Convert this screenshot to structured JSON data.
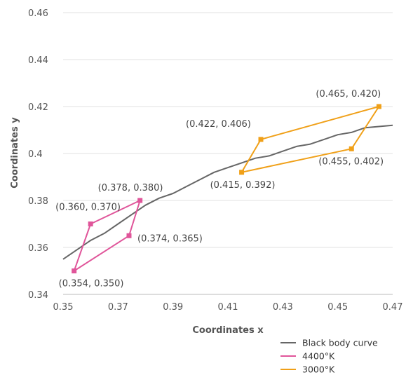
{
  "chart_data": {
    "type": "line",
    "xlabel": "Coordinates x",
    "ylabel": "Coordinates y",
    "xlim": [
      0.35,
      0.47
    ],
    "ylim": [
      0.34,
      0.46
    ],
    "xticks": [
      0.35,
      0.37,
      0.39,
      0.41,
      0.43,
      0.45,
      0.47
    ],
    "yticks": [
      0.34,
      0.36,
      0.38,
      0.4,
      0.42,
      0.44,
      0.46
    ],
    "xtick_labels": [
      "0.35",
      "0.37",
      "0.39",
      "0.41",
      "0.43",
      "0.45",
      "0.47"
    ],
    "ytick_labels": [
      "0.34",
      "0.36",
      "0.38",
      "0.4",
      "0.42",
      "0.44",
      "0.46"
    ],
    "grid": "horizontal",
    "legend_position": "bottom-right",
    "series": [
      {
        "name": "Black body curve",
        "color": "#666666",
        "closed": false,
        "markers": false,
        "points": [
          [
            0.35,
            0.355
          ],
          [
            0.355,
            0.359
          ],
          [
            0.36,
            0.363
          ],
          [
            0.365,
            0.366
          ],
          [
            0.37,
            0.37
          ],
          [
            0.375,
            0.374
          ],
          [
            0.38,
            0.378
          ],
          [
            0.385,
            0.381
          ],
          [
            0.39,
            0.383
          ],
          [
            0.395,
            0.386
          ],
          [
            0.4,
            0.389
          ],
          [
            0.405,
            0.392
          ],
          [
            0.41,
            0.394
          ],
          [
            0.415,
            0.396
          ],
          [
            0.42,
            0.398
          ],
          [
            0.425,
            0.399
          ],
          [
            0.43,
            0.401
          ],
          [
            0.435,
            0.403
          ],
          [
            0.44,
            0.404
          ],
          [
            0.445,
            0.406
          ],
          [
            0.45,
            0.408
          ],
          [
            0.455,
            0.409
          ],
          [
            0.46,
            0.411
          ],
          [
            0.465,
            0.4115
          ],
          [
            0.47,
            0.412
          ]
        ]
      },
      {
        "name": "4400°K",
        "color": "#e0559a",
        "closed": true,
        "markers": true,
        "points": [
          [
            0.354,
            0.35
          ],
          [
            0.36,
            0.37
          ],
          [
            0.378,
            0.38
          ],
          [
            0.374,
            0.365
          ]
        ],
        "labels": [
          "(0.354, 0.350)",
          "(0.360, 0.370)",
          "(0.378, 0.380)",
          "(0.374, 0.365)"
        ]
      },
      {
        "name": "3000°K",
        "color": "#f0a018",
        "closed": true,
        "markers": true,
        "points": [
          [
            0.415,
            0.392
          ],
          [
            0.422,
            0.406
          ],
          [
            0.465,
            0.42
          ],
          [
            0.455,
            0.402
          ]
        ],
        "labels": [
          "(0.415, 0.392)",
          "(0.422, 0.406)",
          "(0.465, 0.420)",
          "(0.455, 0.402)"
        ]
      }
    ]
  }
}
